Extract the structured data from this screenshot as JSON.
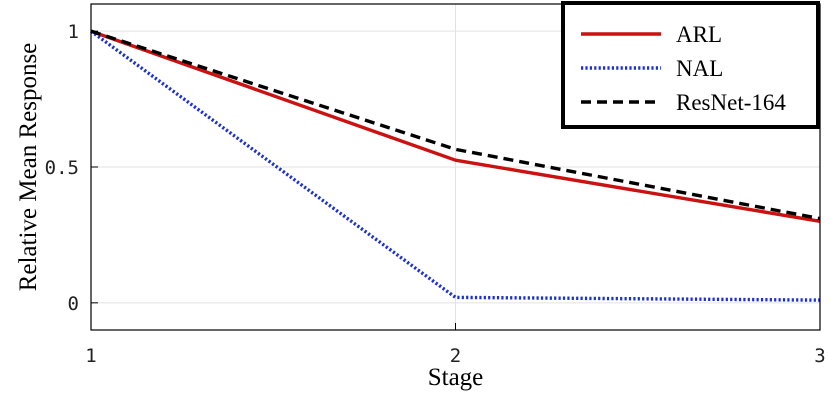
{
  "chart_data": {
    "type": "line",
    "title": "",
    "xlabel": "Stage",
    "ylabel": "Relative Mean Response",
    "x": [
      1,
      2,
      3
    ],
    "xlim": [
      1,
      3
    ],
    "ylim": [
      -0.1,
      1.1
    ],
    "xticks": [
      1,
      2,
      3
    ],
    "yticks": [
      0,
      0.5,
      1
    ],
    "xtick_labels": [
      "1",
      "2",
      "3"
    ],
    "ytick_labels": [
      "0",
      "0.5",
      "1"
    ],
    "grid": true,
    "legend_position": "top-right",
    "series": [
      {
        "name": "ARL",
        "values": [
          1.0,
          0.525,
          0.3
        ],
        "color": "#cc1111",
        "style": "solid"
      },
      {
        "name": "NAL",
        "values": [
          1.0,
          0.02,
          0.01
        ],
        "color": "#1a2fd6",
        "style": "dotted"
      },
      {
        "name": "ResNet-164",
        "values": [
          1.0,
          0.565,
          0.31
        ],
        "color": "#000000",
        "style": "dashed"
      }
    ]
  }
}
